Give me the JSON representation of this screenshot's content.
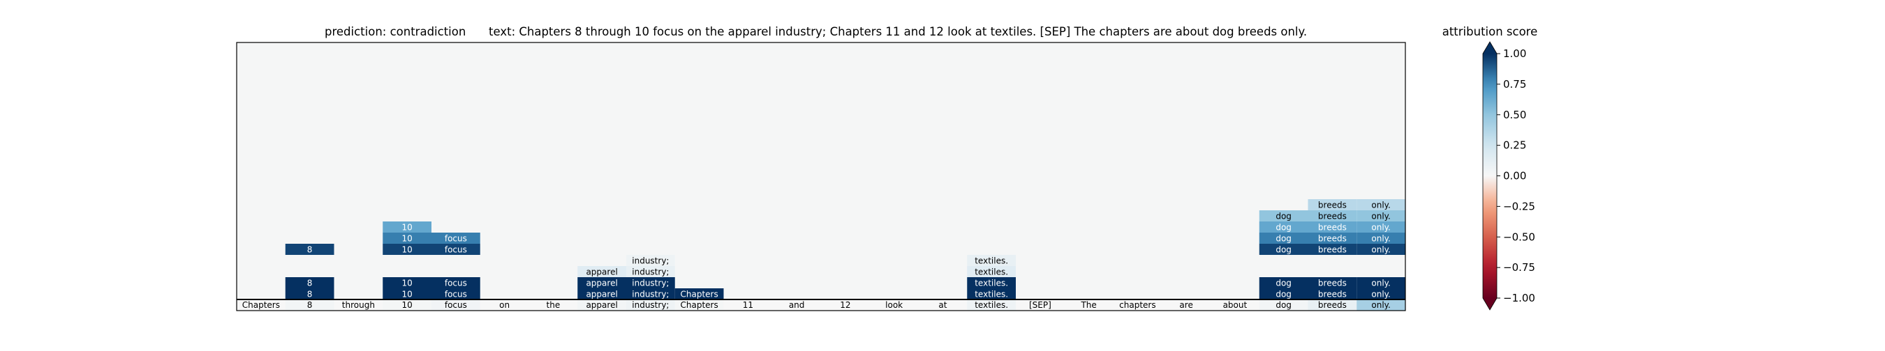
{
  "chart_data": {
    "type": "heatmap",
    "header": {
      "prediction_label": "prediction:",
      "prediction_value": "contradiction",
      "text_label": "text:",
      "text_value": "Chapters 8 through 10 focus on the apparel industry; Chapters 11 and 12 look at textiles. [SEP] The chapters are about dog breeds only."
    },
    "tokens": [
      "Chapters",
      "8",
      "through",
      "10",
      "focus",
      "on",
      "the",
      "apparel",
      "industry;",
      "Chapters",
      "11",
      "and",
      "12",
      "look",
      "at",
      "textiles.",
      "[SEP]",
      "The",
      "chapters",
      "are",
      "about",
      "dog",
      "breeds",
      "only."
    ],
    "base_row": [
      0.0,
      0.03,
      0.0,
      0.02,
      0.04,
      0.0,
      0.0,
      0.03,
      0.06,
      0.02,
      0.0,
      0.0,
      0.0,
      0.0,
      0.0,
      0.06,
      0.0,
      0.0,
      0.0,
      0.0,
      0.0,
      0.03,
      0.1,
      0.42
    ],
    "rows": [
      {
        "row": 21,
        "cells": [
          [
            1,
            1.0
          ],
          [
            3,
            1.0
          ],
          [
            4,
            1.0
          ],
          [
            7,
            1.0
          ],
          [
            8,
            1.0
          ],
          [
            9,
            1.0
          ],
          [
            15,
            1.0
          ],
          [
            21,
            1.0
          ],
          [
            22,
            1.0
          ],
          [
            23,
            1.0
          ]
        ]
      },
      {
        "row": 20,
        "cells": [
          [
            1,
            1.0
          ],
          [
            3,
            1.0
          ],
          [
            4,
            1.0
          ],
          [
            7,
            1.0
          ],
          [
            8,
            1.0
          ],
          [
            15,
            1.0
          ],
          [
            21,
            1.0
          ],
          [
            22,
            1.0
          ],
          [
            23,
            1.0
          ]
        ]
      },
      {
        "row": 19,
        "cells": [
          [
            7,
            0.15
          ],
          [
            8,
            0.1
          ],
          [
            15,
            0.15
          ]
        ]
      },
      {
        "row": 18,
        "cells": [
          [
            8,
            0.06
          ],
          [
            15,
            0.1
          ]
        ]
      },
      {
        "row": 17,
        "cells": [
          [
            1,
            0.95
          ],
          [
            3,
            0.95
          ],
          [
            4,
            0.95
          ],
          [
            21,
            0.95
          ],
          [
            22,
            0.95
          ],
          [
            23,
            0.95
          ]
        ]
      },
      {
        "row": 16,
        "cells": [
          [
            3,
            0.8
          ],
          [
            4,
            0.8
          ],
          [
            21,
            0.8
          ],
          [
            22,
            0.8
          ],
          [
            23,
            0.8
          ]
        ]
      },
      {
        "row": 15,
        "cells": [
          [
            3,
            0.65
          ],
          [
            21,
            0.65
          ],
          [
            22,
            0.65
          ],
          [
            23,
            0.65
          ]
        ]
      },
      {
        "row": 14,
        "cells": [
          [
            21,
            0.5
          ],
          [
            22,
            0.5
          ],
          [
            23,
            0.5
          ]
        ]
      },
      {
        "row": 13,
        "cells": [
          [
            22,
            0.35
          ],
          [
            23,
            0.35
          ]
        ]
      }
    ],
    "colorbar": {
      "title": "attribution score",
      "range": [
        -1.0,
        1.0
      ],
      "ticks": [
        1.0,
        0.75,
        0.5,
        0.25,
        0.0,
        -0.25,
        -0.5,
        -0.75,
        -1.0
      ],
      "tick_labels": [
        "1.00",
        "0.75",
        "0.50",
        "0.25",
        "0.00",
        "−0.25",
        "−0.50",
        "−0.75",
        "−1.00"
      ],
      "colormap": "RdBu",
      "extend": "both"
    }
  }
}
